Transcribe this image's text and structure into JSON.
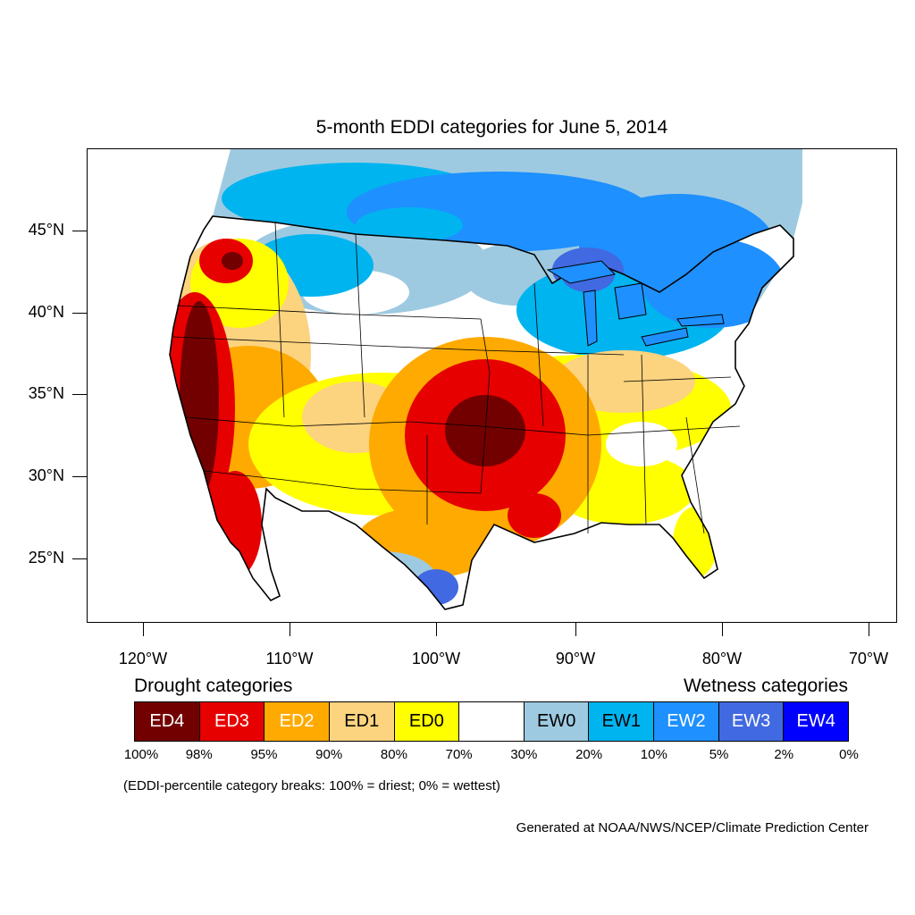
{
  "title": "5-month EDDI categories for June 5, 2014",
  "lat_labels": [
    "45°N",
    "40°N",
    "35°N",
    "30°N",
    "25°N"
  ],
  "lon_labels": [
    "120°W",
    "110°W",
    "100°W",
    "90°W",
    "80°W",
    "70°W"
  ],
  "legend": {
    "drought_heading": "Drought categories",
    "wetness_heading": "Wetness categories",
    "categories": [
      {
        "label": "ED4",
        "color": "#730000",
        "text_color": "#ffffff"
      },
      {
        "label": "ED3",
        "color": "#e60000",
        "text_color": "#ffffff"
      },
      {
        "label": "ED2",
        "color": "#ffaa00",
        "text_color": "#ffffff"
      },
      {
        "label": "ED1",
        "color": "#fcd37f",
        "text_color": "#000000"
      },
      {
        "label": "ED0",
        "color": "#ffff00",
        "text_color": "#000000"
      },
      {
        "label": "",
        "color": "#ffffff",
        "text_color": "#000000"
      },
      {
        "label": "EW0",
        "color": "#9ecae1",
        "text_color": "#000000"
      },
      {
        "label": "EW1",
        "color": "#00b4f0",
        "text_color": "#000000"
      },
      {
        "label": "EW2",
        "color": "#1e90ff",
        "text_color": "#ffffff"
      },
      {
        "label": "EW3",
        "color": "#4169e1",
        "text_color": "#ffffff"
      },
      {
        "label": "EW4",
        "color": "#0000ff",
        "text_color": "#ffffff"
      }
    ],
    "percent_breaks": [
      "100%",
      "98%",
      "95%",
      "90%",
      "80%",
      "70%",
      "30%",
      "20%",
      "10%",
      "5%",
      "2%",
      "0%"
    ]
  },
  "note": "(EDDI-percentile category breaks: 100% = driest; 0% = wettest)",
  "credit": "Generated at NOAA/NWS/NCEP/Climate Prediction Center"
}
